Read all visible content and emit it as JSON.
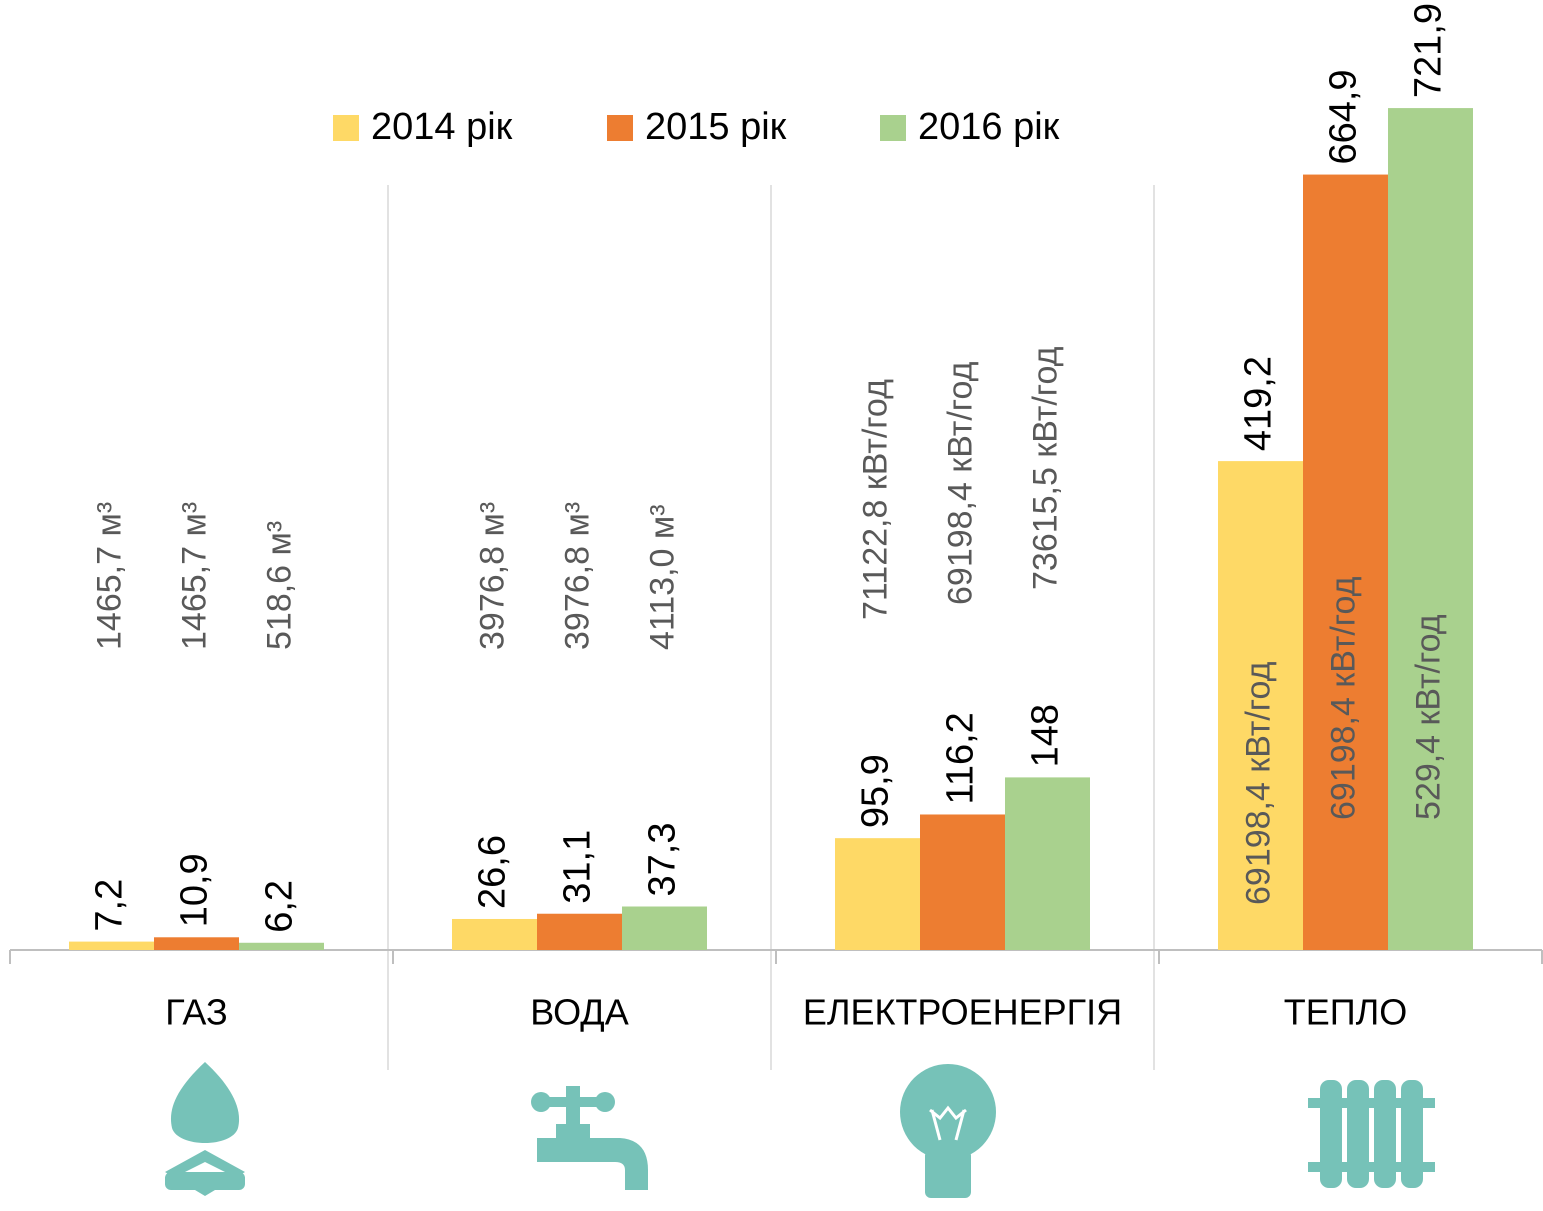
{
  "chart_data": {
    "type": "bar",
    "categories": [
      "ГАЗ",
      "ВОДА",
      "ЕЛЕКТРОЕНЕРГІЯ",
      "ТЕПЛО"
    ],
    "series": [
      {
        "name": "2014 рік",
        "color": "#fed966",
        "values": [
          7.2,
          26.6,
          95.9,
          419.2
        ],
        "value_labels": [
          "7,2",
          "26,6",
          "95,9",
          "419,2"
        ],
        "annotations": [
          "1465,7 м³",
          "3976,8  м³",
          "71122,8  кВт/год",
          "69198,4 кВт/год"
        ]
      },
      {
        "name": "2015 рік",
        "color": "#ed7d31",
        "values": [
          10.9,
          31.1,
          116.2,
          664.9
        ],
        "value_labels": [
          "10,9",
          "31,1",
          "116,2",
          "664,9"
        ],
        "annotations": [
          "1465,7 м³",
          "3976,8  м³",
          "69198,4 кВт/год",
          "69198,4 кВт/год"
        ]
      },
      {
        "name": "2016 рік",
        "color": "#a9d18e",
        "values": [
          6.2,
          37.3,
          148,
          721.9
        ],
        "value_labels": [
          "6,2",
          "37,3",
          "148",
          "721,9"
        ],
        "annotations": [
          "518,6  м³",
          "4113,0  м³",
          "73615,5  кВт/год",
          "529,4 кВт/год"
        ]
      }
    ],
    "ylim": [
      0,
      800
    ],
    "legend": "top"
  }
}
